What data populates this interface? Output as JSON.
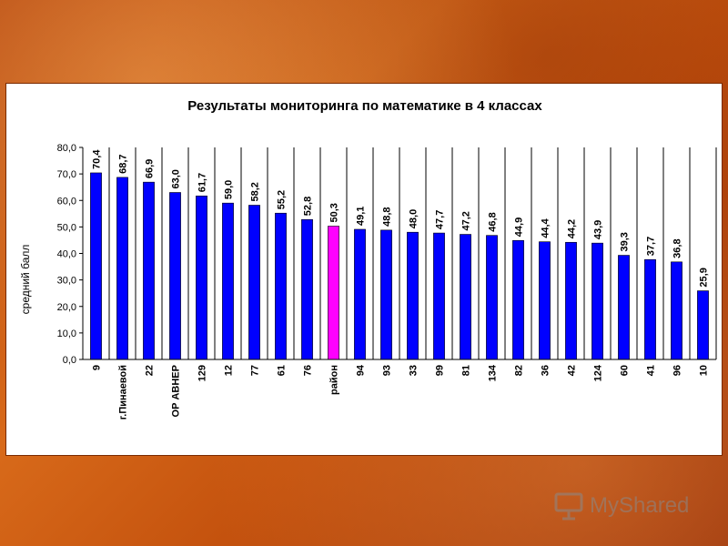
{
  "chart_data": {
    "type": "bar",
    "title": "Результаты мониторинга по математике в 4 классах",
    "ylabel": "средний балл",
    "xlabel": "",
    "ylim": [
      0,
      80
    ],
    "yticks": [
      "0,0",
      "10,0",
      "20,0",
      "30,0",
      "40,0",
      "50,0",
      "60,0",
      "70,0",
      "80,0"
    ],
    "grid": "vertical",
    "legend": "none",
    "categories": [
      "9",
      "г.Пинаевой",
      "22",
      "ОР АВНЕР",
      "129",
      "12",
      "77",
      "61",
      "76",
      "район",
      "94",
      "93",
      "33",
      "99",
      "81",
      "134",
      "82",
      "36",
      "42",
      "124",
      "60",
      "41",
      "96",
      "10"
    ],
    "values": [
      70.4,
      68.7,
      66.9,
      63.0,
      61.7,
      59.0,
      58.2,
      55.2,
      52.8,
      50.3,
      49.1,
      48.8,
      48.0,
      47.7,
      47.2,
      46.8,
      44.9,
      44.4,
      44.2,
      43.9,
      39.3,
      37.7,
      36.8,
      25.9
    ],
    "value_labels": [
      "70,4",
      "68,7",
      "66,9",
      "63,0",
      "61,7",
      "59,0",
      "58,2",
      "55,2",
      "52,8",
      "50,3",
      "49,1",
      "48,8",
      "48,0",
      "47,7",
      "47,2",
      "46,8",
      "44,9",
      "44,4",
      "44,2",
      "43,9",
      "39,3",
      "37,7",
      "36,8",
      "25,9"
    ],
    "highlight_category": "район",
    "colors": {
      "bar": "#0000ff",
      "highlight": "#ff00ff",
      "bar_edge": "#000000",
      "grid": "#000000"
    }
  },
  "watermark": {
    "text": "MyShared",
    "icon": "presentation-board-icon"
  }
}
